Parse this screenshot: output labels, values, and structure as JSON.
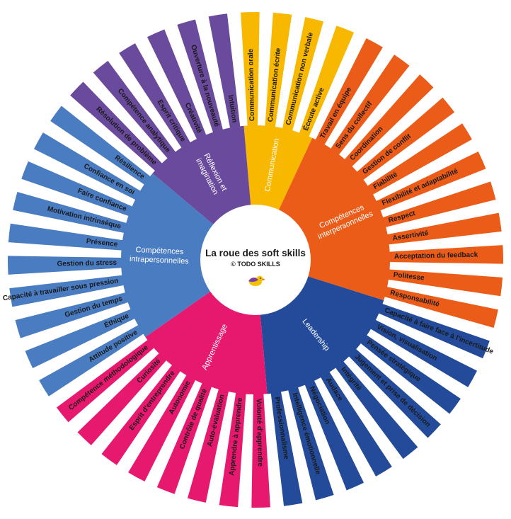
{
  "center": {
    "title": "La roue des soft skills",
    "subtitle": "© TODO SKILLS",
    "logo_icon": "bird-icon"
  },
  "categories": [
    {
      "name": "Communication",
      "color": "#f9b800",
      "skills": [
        "Communication orale",
        "Communication écrite",
        "Communication non verbale",
        "Écoute active"
      ]
    },
    {
      "name": "Compétences interpersonnelles",
      "color": "#ec5c19",
      "skills": [
        "Travail en équipe",
        "Sens du collectif",
        "Coordination",
        "Gestion de conflit",
        "Fiabilité",
        "Flexibilité et adaptabilité",
        "Respect",
        "Assertivité",
        "Acceptation du feedback",
        "Politesse",
        "Responsabilité"
      ]
    },
    {
      "name": "Leadership",
      "color": "#234b9a",
      "skills": [
        "Capacité à faire face à l'incertitude",
        "Vision, visualisation",
        "Pensée stratégique",
        "Jugement et prise de décision",
        "Intégrité",
        "Audace",
        "Négociation",
        "Intelligence émotionnelle",
        "Professionnalisme"
      ]
    },
    {
      "name": "Apprentissage",
      "color": "#e6196e",
      "skills": [
        "Volonté d'apprendre",
        "Apprendre à apprendre",
        "Auto-évaluation",
        "Contrôle de qualité",
        "Autonomie",
        "Esprit d'entreprendre",
        "Curiosité",
        "Compétence méthodologique"
      ]
    },
    {
      "name": "Compétences intrapersonnelles",
      "color": "#4a7cc2",
      "skills": [
        "Attitude positive",
        "Éthique",
        "Gestion du temps",
        "Capacité à travailler sous pression",
        "Gestion du stress",
        "Présence",
        "Motivation intrinsèque",
        "Faire confiance",
        "Confiance en soi",
        "Résilience"
      ]
    },
    {
      "name": "Réflexion et imagination",
      "color": "#6a4a9c",
      "skills": [
        "Résolution de problème",
        "Compétence analytique",
        "Esprit critique",
        "Créativité",
        "Ouverture à la nouveauté",
        "Intuition"
      ]
    }
  ]
}
